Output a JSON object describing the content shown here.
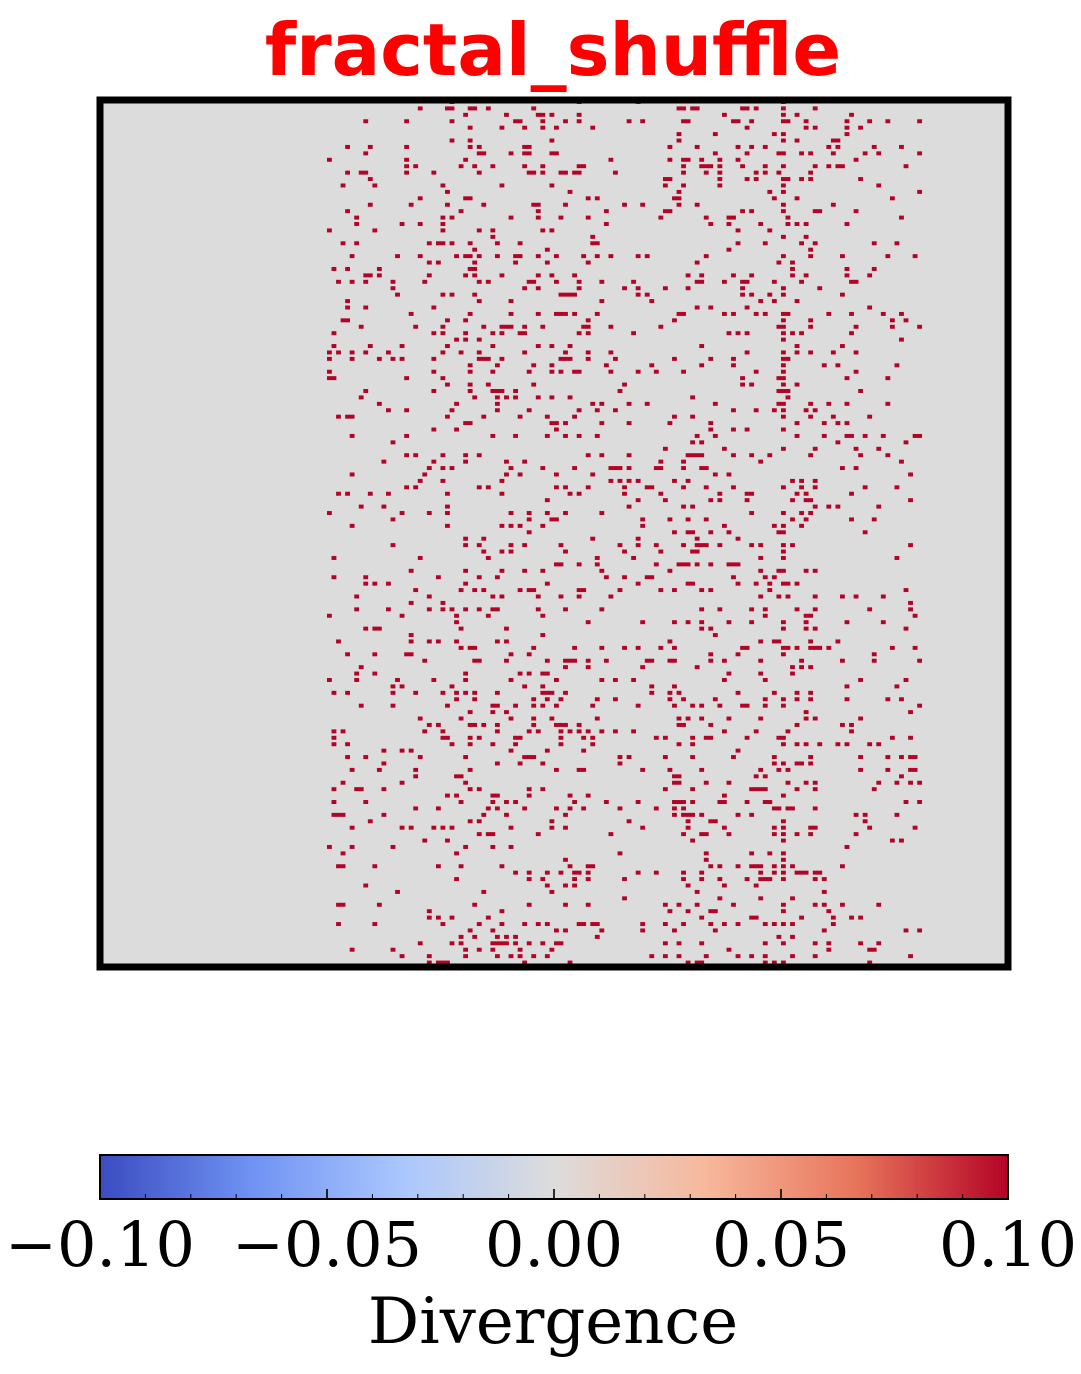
{
  "chart_data": {
    "type": "heatmap",
    "title": "fractal_shuffle",
    "title_color": "#ff0000",
    "grid": false,
    "background_color": "#dcdcdc",
    "highlight_color": "#b40426",
    "colormap": "coolwarm",
    "colormap_stops": [
      "#3b4cc0",
      "#6f92f3",
      "#aac7fd",
      "#dddcdc",
      "#f7b89c",
      "#e7745b",
      "#b40426"
    ],
    "colorbar": {
      "label": "Divergence",
      "range": [
        -0.1,
        0.1
      ],
      "tick_values": [
        -0.1,
        -0.05,
        0.0,
        0.05,
        0.1
      ],
      "tick_labels": [
        "−0.10",
        "−0.05",
        "0.00",
        "0.05",
        "0.10"
      ],
      "minor_tick_step": 0.01
    },
    "cell_values": {
      "background": 0.0,
      "highlighted": 0.1
    },
    "description_of_pattern": "sparse scattered cells at +0.10 (dark red) on a 0.00 background, concentrated in the central columns with a dashed vertical line near the right third"
  }
}
